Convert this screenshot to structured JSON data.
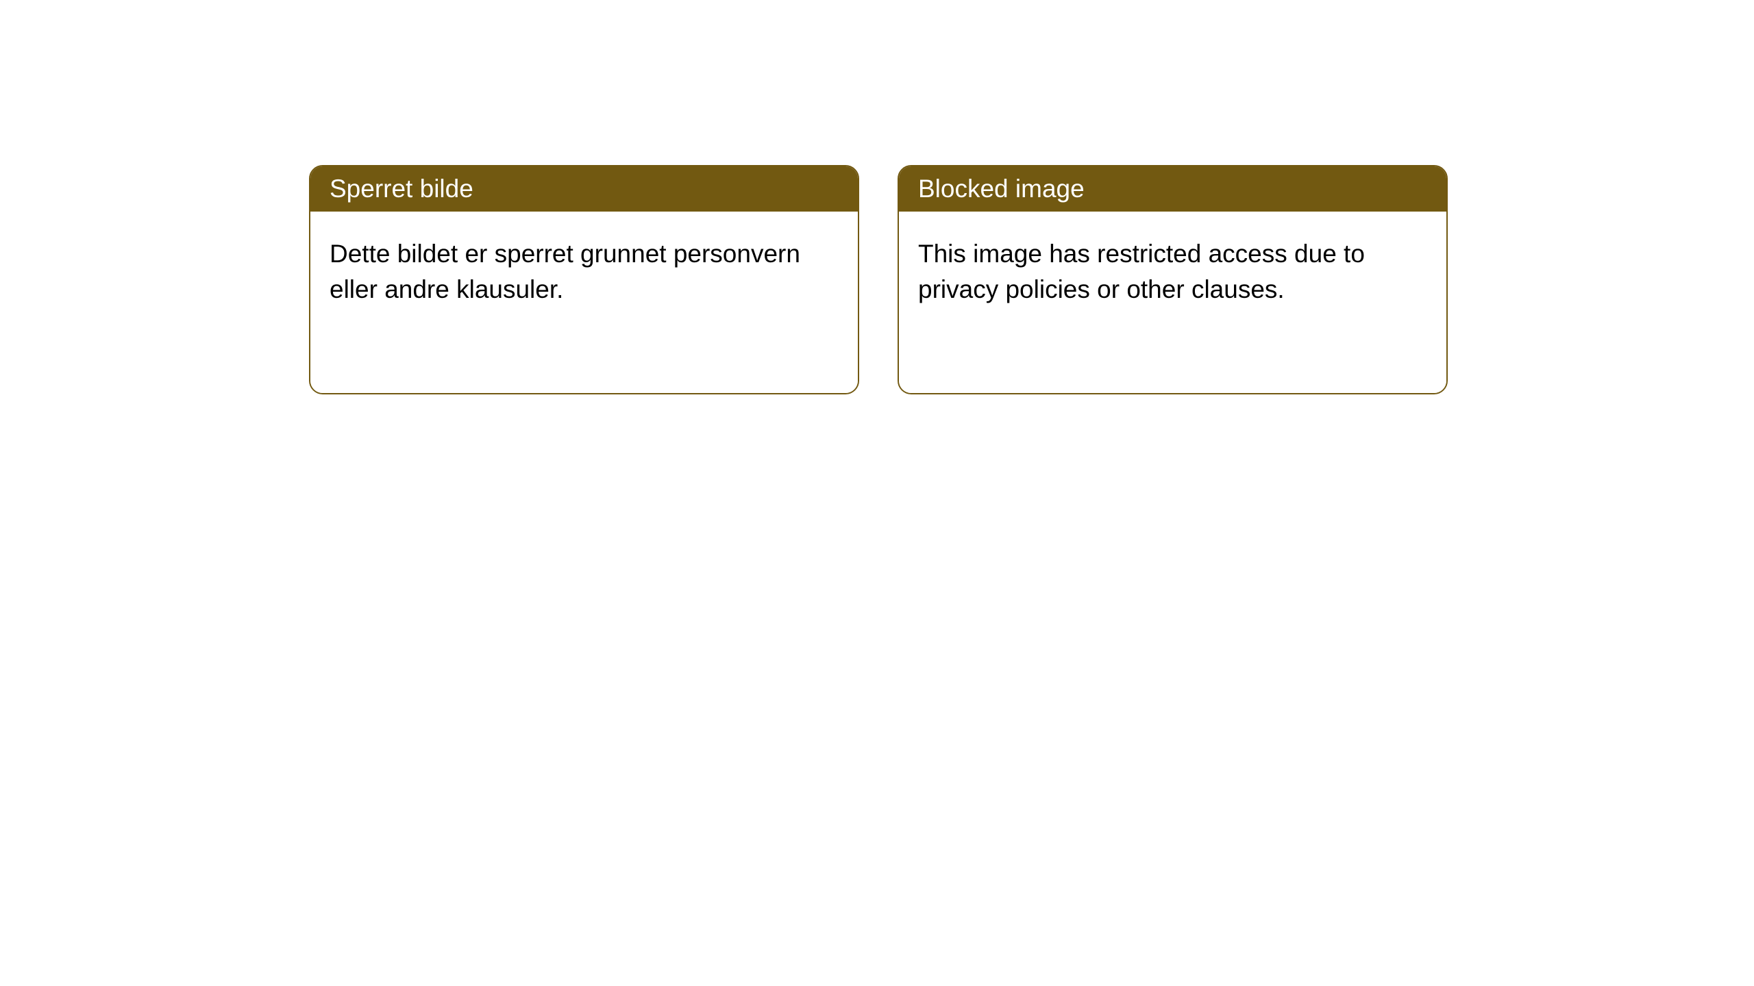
{
  "style": {
    "header_bg_color": "#725911",
    "header_text_color": "#ffffff",
    "border_color": "#725911",
    "border_width": 2,
    "border_radius": 20,
    "body_bg_color": "#ffffff",
    "body_text_color": "#000000",
    "header_fontsize": 37,
    "body_fontsize": 37
  },
  "cards": [
    {
      "title": "Sperret bilde",
      "body": "Dette bildet er sperret grunnet personvern eller andre klausuler."
    },
    {
      "title": "Blocked image",
      "body": "This image has restricted access due to privacy policies or other clauses."
    }
  ]
}
